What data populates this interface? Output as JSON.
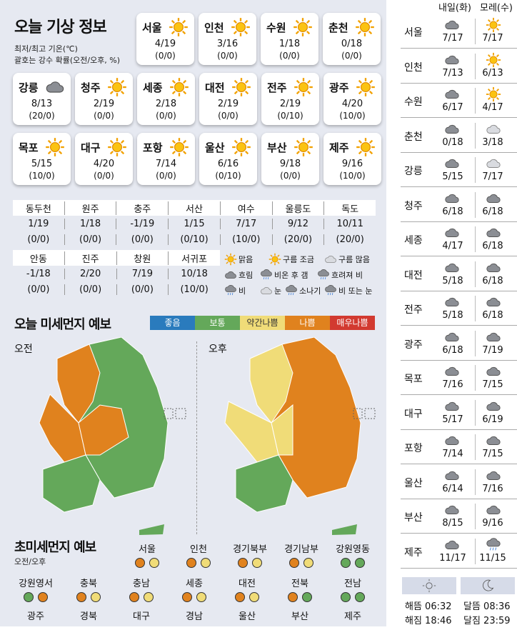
{
  "title": "오늘 기상 정보",
  "note1": "최저/최고 기온(℃)",
  "note2": "괄호는 강수 확률(오전/오후, %)",
  "cards": [
    {
      "name": "서울",
      "icon": "sun",
      "temp": "4/19",
      "prob": "(0/0)"
    },
    {
      "name": "인천",
      "icon": "sun",
      "temp": "3/16",
      "prob": "(0/0)"
    },
    {
      "name": "수원",
      "icon": "sun",
      "temp": "1/18",
      "prob": "(0/0)"
    },
    {
      "name": "춘천",
      "icon": "sun",
      "temp": "0/18",
      "prob": "(0/0)"
    },
    {
      "name": "강릉",
      "icon": "cloud",
      "temp": "8/13",
      "prob": "(20/0)"
    },
    {
      "name": "청주",
      "icon": "sun",
      "temp": "2/19",
      "prob": "(0/0)"
    },
    {
      "name": "세종",
      "icon": "sun",
      "temp": "2/18",
      "prob": "(0/0)"
    },
    {
      "name": "대전",
      "icon": "sun",
      "temp": "2/19",
      "prob": "(0/0)"
    },
    {
      "name": "전주",
      "icon": "sun",
      "temp": "2/19",
      "prob": "(0/10)"
    },
    {
      "name": "광주",
      "icon": "sun",
      "temp": "4/20",
      "prob": "(10/0)"
    },
    {
      "name": "목포",
      "icon": "sun",
      "temp": "5/15",
      "prob": "(10/0)"
    },
    {
      "name": "대구",
      "icon": "sun",
      "temp": "4/20",
      "prob": "(0/0)"
    },
    {
      "name": "포항",
      "icon": "sun",
      "temp": "7/14",
      "prob": "(0/0)"
    },
    {
      "name": "울산",
      "icon": "sun",
      "temp": "6/16",
      "prob": "(0/10)"
    },
    {
      "name": "부산",
      "icon": "sun",
      "temp": "9/18",
      "prob": "(0/0)"
    },
    {
      "name": "제주",
      "icon": "sun",
      "temp": "9/16",
      "prob": "(10/0)"
    }
  ],
  "grid1": {
    "names": [
      "동두천",
      "원주",
      "충주",
      "서산",
      "여수",
      "울릉도",
      "독도"
    ],
    "temps": [
      "1/19",
      "1/18",
      "-1/19",
      "1/15",
      "7/17",
      "9/12",
      "10/11"
    ],
    "probs": [
      "(0/0)",
      "(0/0)",
      "(0/0)",
      "(0/10)",
      "(10/0)",
      "(20/0)",
      "(20/0)"
    ]
  },
  "grid2": {
    "names": [
      "안동",
      "진주",
      "창원",
      "서귀포"
    ],
    "temps": [
      "-1/18",
      "2/20",
      "7/19",
      "10/18"
    ],
    "probs": [
      "(0/0)",
      "(0/0)",
      "(0/0)",
      "(10/0)"
    ]
  },
  "legend": [
    "맑음",
    "구름 조금",
    "구름 많음",
    "흐림",
    "비온 후 갬",
    "흐려져 비",
    "비",
    "눈",
    "소나기",
    "비 또는 눈"
  ],
  "dust_title": "오늘 미세먼지 예보",
  "scale": [
    {
      "label": "좋음",
      "color": "#2a7bbd"
    },
    {
      "label": "보통",
      "color": "#64a85a"
    },
    {
      "label": "약간나쁨",
      "color": "#f0dc78"
    },
    {
      "label": "나쁨",
      "color": "#e0821e"
    },
    {
      "label": "매우나쁨",
      "color": "#d23a30"
    }
  ],
  "am": "오전",
  "pm": "오후",
  "fine_title": "초미세먼지 예보",
  "fine_sub": "오전/오후",
  "fine": [
    {
      "name": "서울",
      "am": "#e0821e",
      "pm": "#f0dc78"
    },
    {
      "name": "인천",
      "am": "#e0821e",
      "pm": "#f0dc78"
    },
    {
      "name": "경기북부",
      "am": "#e0821e",
      "pm": "#f0dc78"
    },
    {
      "name": "경기남부",
      "am": "#e0821e",
      "pm": "#f0dc78"
    },
    {
      "name": "강원영동",
      "am": "#64a85a",
      "pm": "#64a85a"
    },
    {
      "name": "강원영서",
      "am": "#64a85a",
      "pm": "#e0821e"
    },
    {
      "name": "충북",
      "am": "#e0821e",
      "pm": "#f0dc78"
    },
    {
      "name": "충남",
      "am": "#e0821e",
      "pm": "#f0dc78"
    },
    {
      "name": "세종",
      "am": "#e0821e",
      "pm": "#f0dc78"
    },
    {
      "name": "대전",
      "am": "#e0821e",
      "pm": "#f0dc78"
    },
    {
      "name": "전북",
      "am": "#e0821e",
      "pm": "#64a85a"
    },
    {
      "name": "전남",
      "am": "#64a85a",
      "pm": "#64a85a"
    },
    {
      "name": "광주",
      "am": "",
      "pm": ""
    },
    {
      "name": "경북",
      "am": "",
      "pm": ""
    },
    {
      "name": "대구",
      "am": "",
      "pm": ""
    },
    {
      "name": "경남",
      "am": "",
      "pm": ""
    },
    {
      "name": "울산",
      "am": "",
      "pm": ""
    },
    {
      "name": "부산",
      "am": "",
      "pm": ""
    },
    {
      "name": "제주",
      "am": "",
      "pm": ""
    }
  ],
  "right": {
    "h1": "내일(화)",
    "h2": "모레(수)",
    "rows": [
      {
        "c": "서울",
        "i1": "cloud",
        "t1": "7/17",
        "i2": "sun",
        "t2": "7/17"
      },
      {
        "c": "인천",
        "i1": "cloud",
        "t1": "7/13",
        "i2": "sun",
        "t2": "6/13"
      },
      {
        "c": "수원",
        "i1": "cloud",
        "t1": "6/17",
        "i2": "sun",
        "t2": "4/17"
      },
      {
        "c": "춘천",
        "i1": "cloud",
        "t1": "0/18",
        "i2": "lightcloud",
        "t2": "3/18"
      },
      {
        "c": "강릉",
        "i1": "cloud",
        "t1": "5/15",
        "i2": "lightcloud",
        "t2": "7/17"
      },
      {
        "c": "청주",
        "i1": "cloud",
        "t1": "6/18",
        "i2": "cloud",
        "t2": "6/18"
      },
      {
        "c": "세종",
        "i1": "cloud",
        "t1": "4/17",
        "i2": "cloud",
        "t2": "6/18"
      },
      {
        "c": "대전",
        "i1": "cloud",
        "t1": "5/18",
        "i2": "cloud",
        "t2": "6/18"
      },
      {
        "c": "전주",
        "i1": "cloud",
        "t1": "5/18",
        "i2": "cloud",
        "t2": "6/18"
      },
      {
        "c": "광주",
        "i1": "cloud",
        "t1": "6/18",
        "i2": "cloud",
        "t2": "7/19"
      },
      {
        "c": "목포",
        "i1": "cloud",
        "t1": "7/16",
        "i2": "cloud",
        "t2": "7/15"
      },
      {
        "c": "대구",
        "i1": "cloud",
        "t1": "5/17",
        "i2": "cloud",
        "t2": "6/19"
      },
      {
        "c": "포항",
        "i1": "cloud",
        "t1": "7/14",
        "i2": "cloud",
        "t2": "7/15"
      },
      {
        "c": "울산",
        "i1": "cloud",
        "t1": "6/14",
        "i2": "cloud",
        "t2": "7/16"
      },
      {
        "c": "부산",
        "i1": "cloud",
        "t1": "8/15",
        "i2": "cloud",
        "t2": "9/16"
      },
      {
        "c": "제주",
        "i1": "cloud",
        "t1": "11/17",
        "i2": "raincloud",
        "t2": "11/15"
      }
    ],
    "sunrise": "해뜸 06:32",
    "sunset": "해짐 18:46",
    "moonrise": "달뜸 08:36",
    "moonset": "달짐 23:59"
  }
}
